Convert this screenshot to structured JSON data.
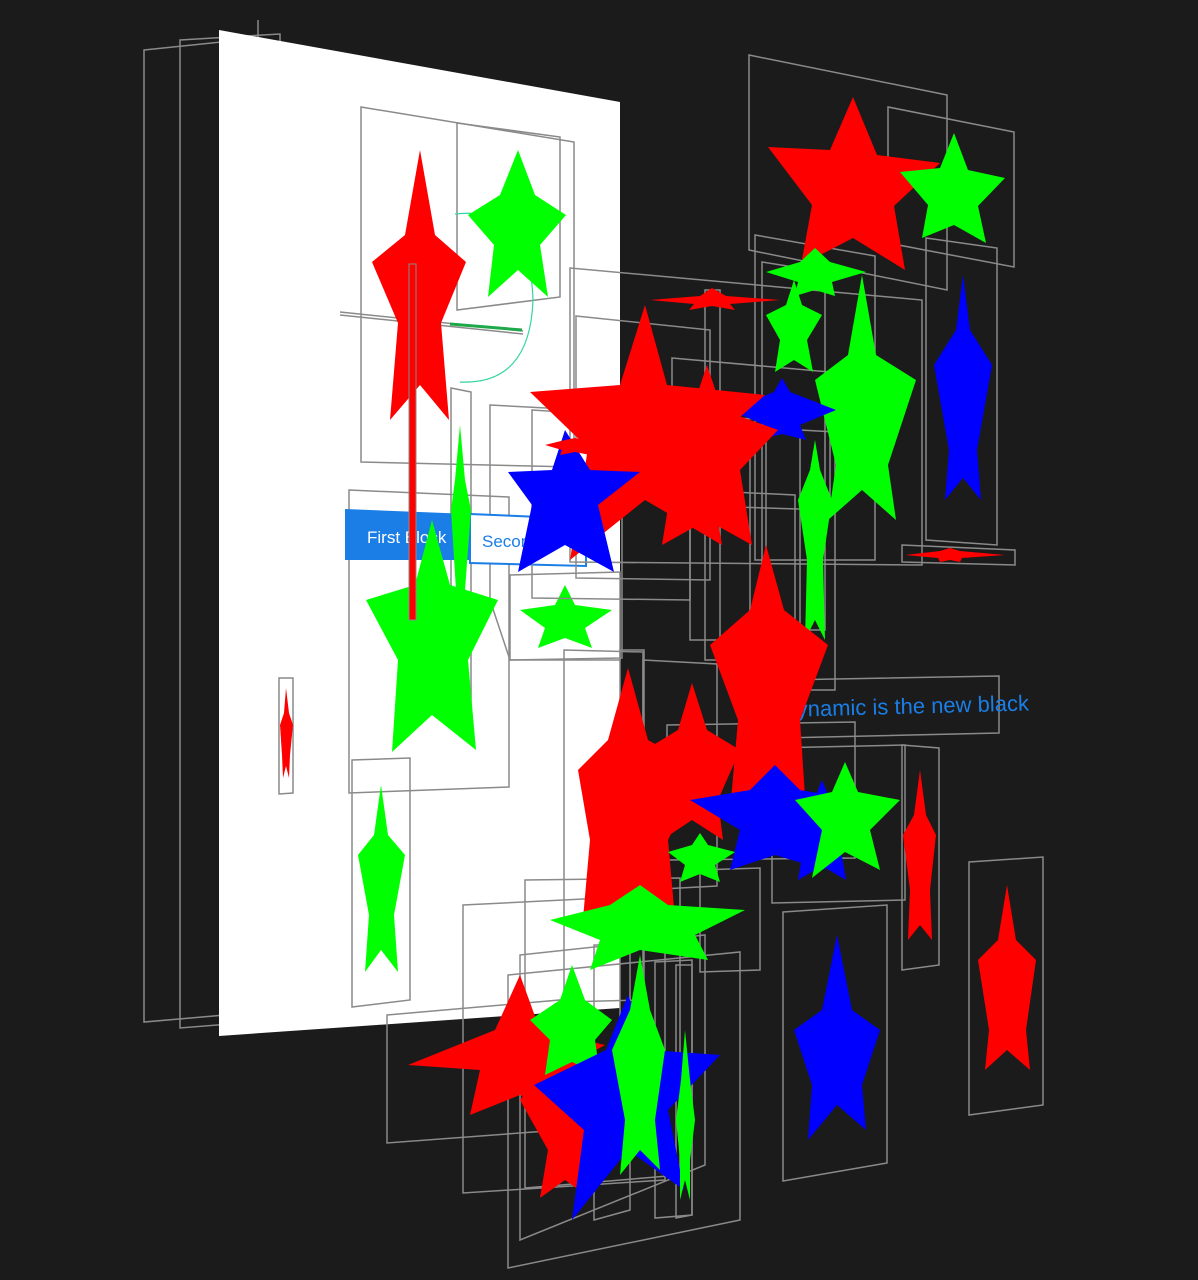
{
  "segmented_control": {
    "first_label": "First Block",
    "second_label": "Second",
    "accent": "#1a7ee6"
  },
  "dynamic_label": {
    "text": "Dynamic is the new black",
    "color": "#1a7ee6"
  },
  "colors": {
    "background": "#1b1b1b",
    "frame": "#8a8a8a",
    "red": "#ff0000",
    "green": "#00ff00",
    "blue": "#0000ff",
    "canvas": "#ffffff"
  }
}
